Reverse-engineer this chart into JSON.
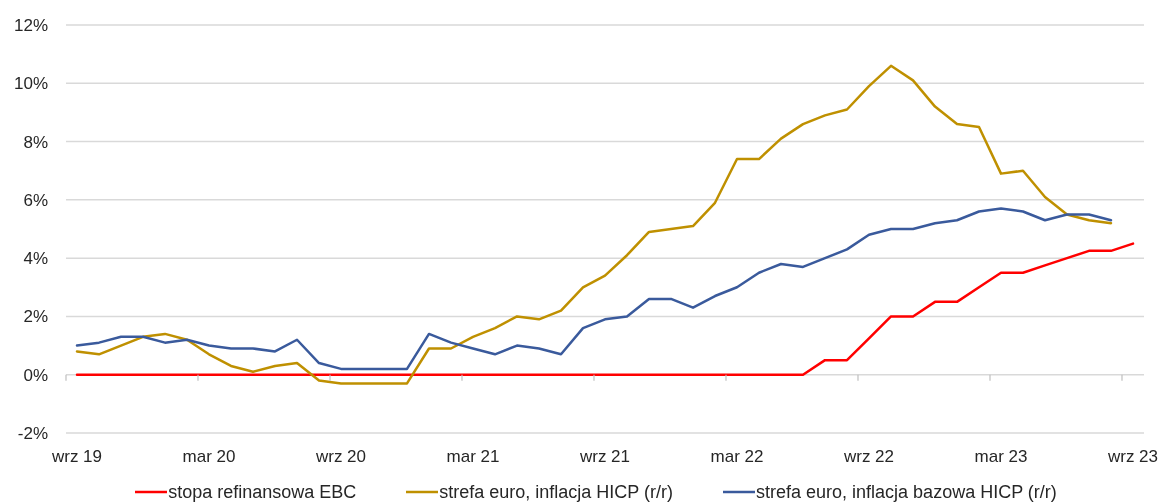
{
  "chart_data": {
    "type": "line",
    "categories": [
      "wrz 19",
      null,
      null,
      null,
      null,
      null,
      "mar 20",
      null,
      null,
      null,
      null,
      null,
      "wrz 20",
      null,
      null,
      null,
      null,
      null,
      "mar 21",
      null,
      null,
      null,
      null,
      null,
      "wrz 21",
      null,
      null,
      null,
      null,
      null,
      "mar 22",
      null,
      null,
      null,
      null,
      null,
      "wrz 22",
      null,
      null,
      null,
      null,
      null,
      "mar 23",
      null,
      null,
      null,
      null,
      null,
      "wrz 23"
    ],
    "series": [
      {
        "name": "stopa refinansowa EBC",
        "color": "#ff0000",
        "values": [
          0,
          0,
          0,
          0,
          0,
          0,
          0,
          0,
          0,
          0,
          0,
          0,
          0,
          0,
          0,
          0,
          0,
          0,
          0,
          0,
          0,
          0,
          0,
          0,
          0,
          0,
          0,
          0,
          0,
          0,
          0,
          0,
          0,
          0,
          0.5,
          0.5,
          1.25,
          2,
          2,
          2.5,
          2.5,
          3,
          3.5,
          3.5,
          3.75,
          4,
          4.25,
          4.25,
          4.5
        ]
      },
      {
        "name": "strefa euro, inflacja HICP (r/r)",
        "color": "#bf9000",
        "values": [
          0.8,
          0.7,
          1.0,
          1.3,
          1.4,
          1.2,
          0.7,
          0.3,
          0.1,
          0.3,
          0.4,
          -0.2,
          -0.3,
          -0.3,
          -0.3,
          -0.3,
          0.9,
          0.9,
          1.3,
          1.6,
          2.0,
          1.9,
          2.2,
          3.0,
          3.4,
          4.1,
          4.9,
          5.0,
          5.1,
          5.9,
          7.4,
          7.4,
          8.1,
          8.6,
          8.9,
          9.1,
          9.9,
          10.6,
          10.1,
          9.2,
          8.6,
          8.5,
          6.9,
          7.0,
          6.1,
          5.5,
          5.3,
          5.2,
          null
        ]
      },
      {
        "name": "strefa euro, inflacja bazowa HICP (r/r)",
        "color": "#3a5a9c",
        "values": [
          1.0,
          1.1,
          1.3,
          1.3,
          1.1,
          1.2,
          1.0,
          0.9,
          0.9,
          0.8,
          1.2,
          0.4,
          0.2,
          0.2,
          0.2,
          0.2,
          1.4,
          1.1,
          0.9,
          0.7,
          1.0,
          0.9,
          0.7,
          1.6,
          1.9,
          2.0,
          2.6,
          2.6,
          2.3,
          2.7,
          3.0,
          3.5,
          3.8,
          3.7,
          4.0,
          4.3,
          4.8,
          5.0,
          5.0,
          5.2,
          5.3,
          5.6,
          5.7,
          5.6,
          5.3,
          5.5,
          5.5,
          5.3,
          null
        ]
      }
    ],
    "ylim": [
      -2,
      12
    ],
    "yticks": [
      {
        "value": -2,
        "label": "-2%"
      },
      {
        "value": 0,
        "label": "0%"
      },
      {
        "value": 2,
        "label": "2%"
      },
      {
        "value": 4,
        "label": "4%"
      },
      {
        "value": 6,
        "label": "6%"
      },
      {
        "value": 8,
        "label": "8%"
      },
      {
        "value": 10,
        "label": "10%"
      },
      {
        "value": 12,
        "label": "12%"
      }
    ],
    "grid": "y",
    "legend": "bottom"
  }
}
